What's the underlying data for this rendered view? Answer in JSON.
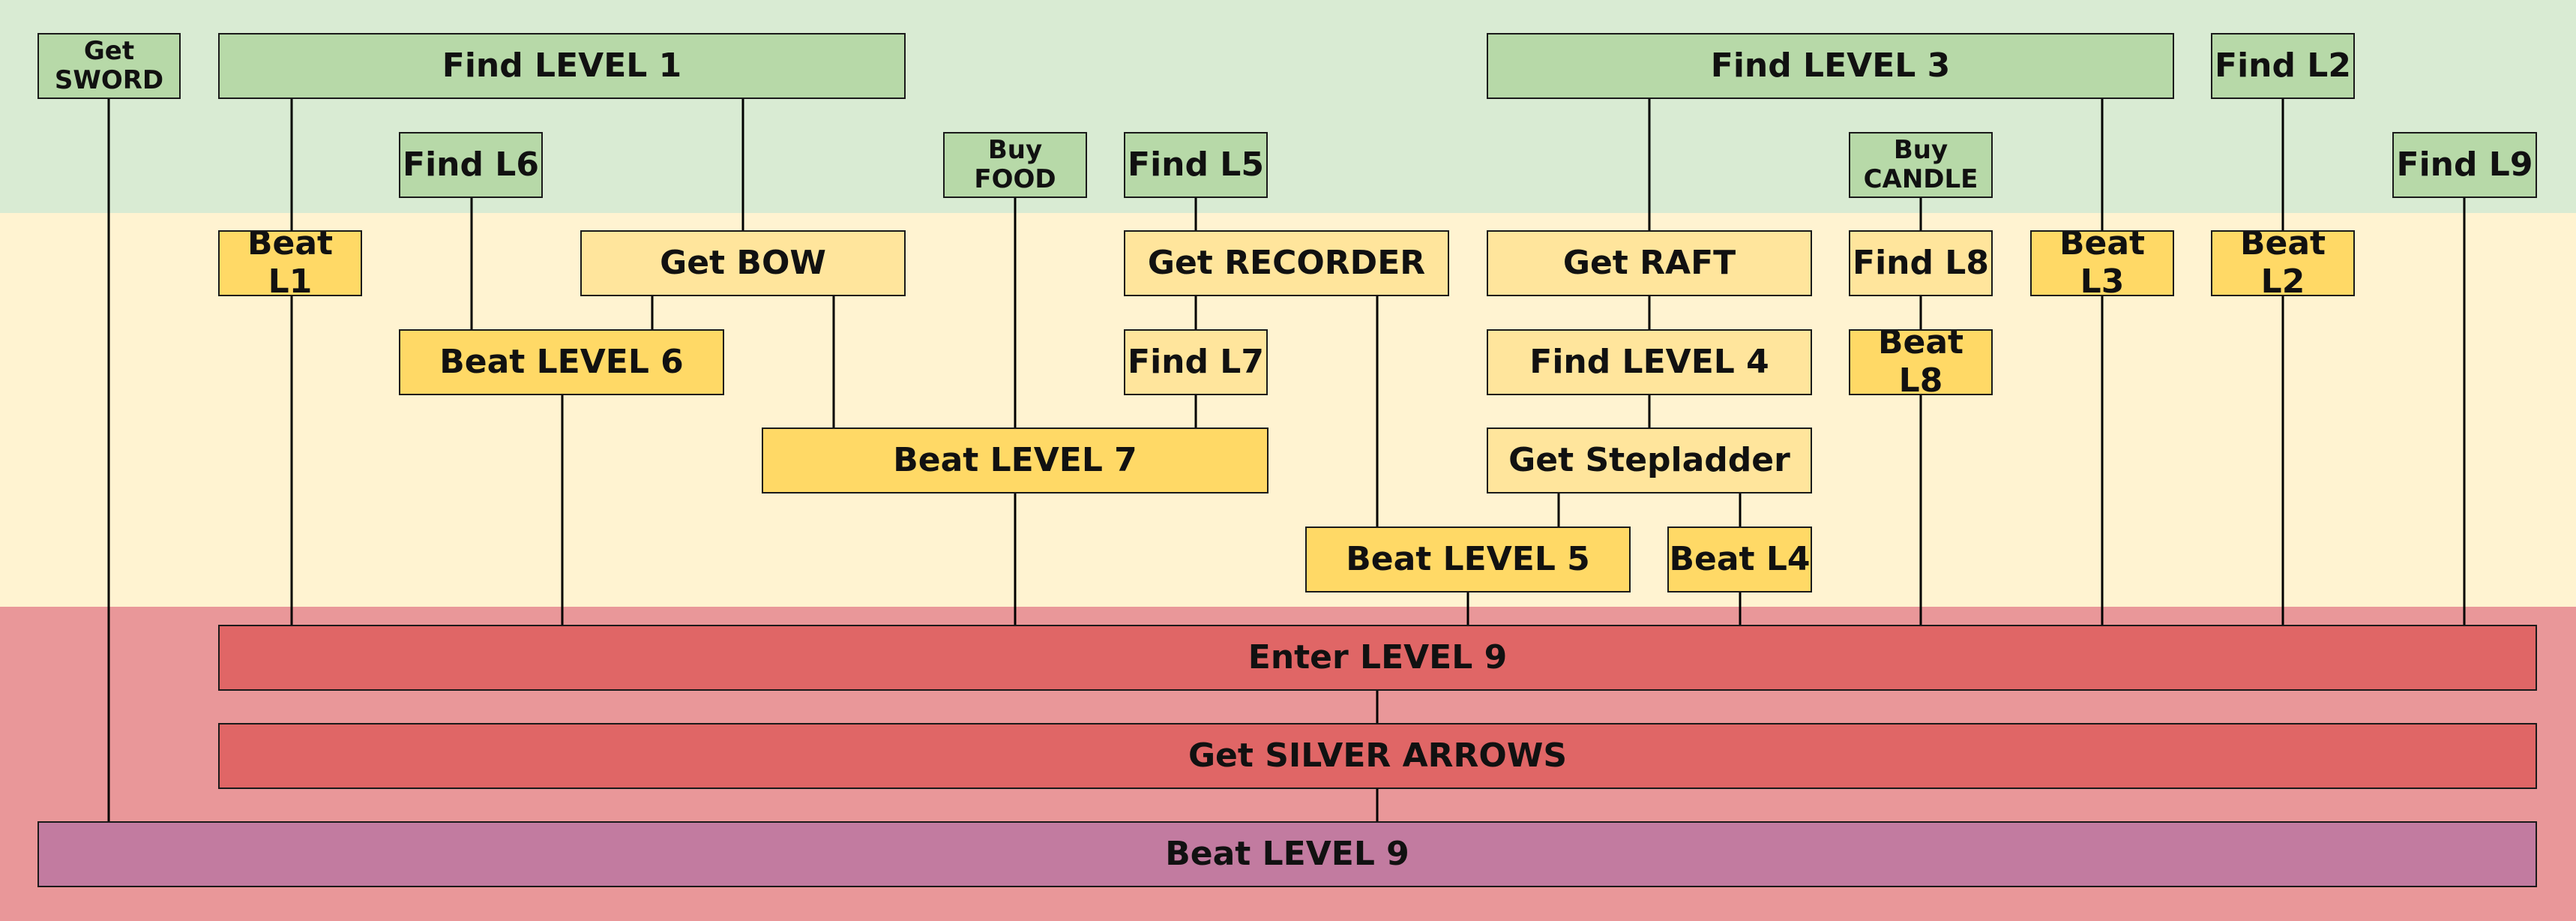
{
  "colors": {
    "band_top": "#d9ebd3",
    "band_mid": "#fff3d1",
    "band_bot": "#e99799",
    "find_node": "#b7d9a8",
    "get_node": "#ffe59c",
    "beat_node": "#ffd966",
    "final_red": "#e06666",
    "final_purple": "#c27ba0",
    "line": "#000000"
  },
  "nodes": [
    {
      "id": "get-sword",
      "label": "Get\nSWORD"
    },
    {
      "id": "find-level-1",
      "label": "Find LEVEL 1"
    },
    {
      "id": "find-level-3",
      "label": "Find LEVEL 3"
    },
    {
      "id": "find-l2",
      "label": "Find L2"
    },
    {
      "id": "find-l6",
      "label": "Find L6"
    },
    {
      "id": "buy-food",
      "label": "Buy\nFOOD"
    },
    {
      "id": "find-l5",
      "label": "Find L5"
    },
    {
      "id": "buy-candle",
      "label": "Buy\nCANDLE"
    },
    {
      "id": "find-l9",
      "label": "Find L9"
    },
    {
      "id": "beat-l1",
      "label": "Beat L1"
    },
    {
      "id": "get-bow",
      "label": "Get BOW"
    },
    {
      "id": "get-recorder",
      "label": "Get RECORDER"
    },
    {
      "id": "get-raft",
      "label": "Get RAFT"
    },
    {
      "id": "find-l8",
      "label": "Find L8"
    },
    {
      "id": "beat-l3",
      "label": "Beat L3"
    },
    {
      "id": "beat-l2",
      "label": "Beat L2"
    },
    {
      "id": "beat-level-6",
      "label": "Beat LEVEL 6"
    },
    {
      "id": "find-l7",
      "label": "Find L7"
    },
    {
      "id": "find-level-4",
      "label": "Find LEVEL 4"
    },
    {
      "id": "beat-l8",
      "label": "Beat L8"
    },
    {
      "id": "beat-level-7",
      "label": "Beat LEVEL 7"
    },
    {
      "id": "get-stepladder",
      "label": "Get Stepladder"
    },
    {
      "id": "beat-level-5",
      "label": "Beat LEVEL 5"
    },
    {
      "id": "beat-l4",
      "label": "Beat L4"
    },
    {
      "id": "enter-level-9",
      "label": "Enter LEVEL 9"
    },
    {
      "id": "get-silver-arrows",
      "label": "Get SILVER ARROWS"
    },
    {
      "id": "beat-level-9",
      "label": "Beat LEVEL 9"
    }
  ],
  "edges": [
    [
      "get-sword",
      "beat-level-9"
    ],
    [
      "find-level-1",
      "beat-l1"
    ],
    [
      "find-level-1",
      "get-bow"
    ],
    [
      "find-l6",
      "beat-level-6"
    ],
    [
      "get-bow",
      "beat-level-6"
    ],
    [
      "get-bow",
      "beat-level-7"
    ],
    [
      "buy-food",
      "beat-level-7"
    ],
    [
      "find-l5",
      "get-recorder"
    ],
    [
      "get-recorder",
      "find-l7"
    ],
    [
      "find-l7",
      "beat-level-7"
    ],
    [
      "get-recorder",
      "beat-level-5"
    ],
    [
      "find-level-3",
      "get-raft"
    ],
    [
      "find-level-3",
      "beat-l3"
    ],
    [
      "get-raft",
      "find-level-4"
    ],
    [
      "find-level-4",
      "get-stepladder"
    ],
    [
      "get-stepladder",
      "beat-level-5"
    ],
    [
      "get-stepladder",
      "beat-l4"
    ],
    [
      "buy-candle",
      "find-l8"
    ],
    [
      "find-l8",
      "beat-l8"
    ],
    [
      "find-l2",
      "beat-l2"
    ],
    [
      "beat-l1",
      "enter-level-9"
    ],
    [
      "beat-level-6",
      "enter-level-9"
    ],
    [
      "beat-level-7",
      "enter-level-9"
    ],
    [
      "beat-level-5",
      "enter-level-9"
    ],
    [
      "beat-l4",
      "enter-level-9"
    ],
    [
      "beat-l8",
      "enter-level-9"
    ],
    [
      "beat-l3",
      "enter-level-9"
    ],
    [
      "beat-l2",
      "enter-level-9"
    ],
    [
      "find-l9",
      "enter-level-9"
    ],
    [
      "enter-level-9",
      "get-silver-arrows"
    ],
    [
      "get-silver-arrows",
      "beat-level-9"
    ]
  ]
}
